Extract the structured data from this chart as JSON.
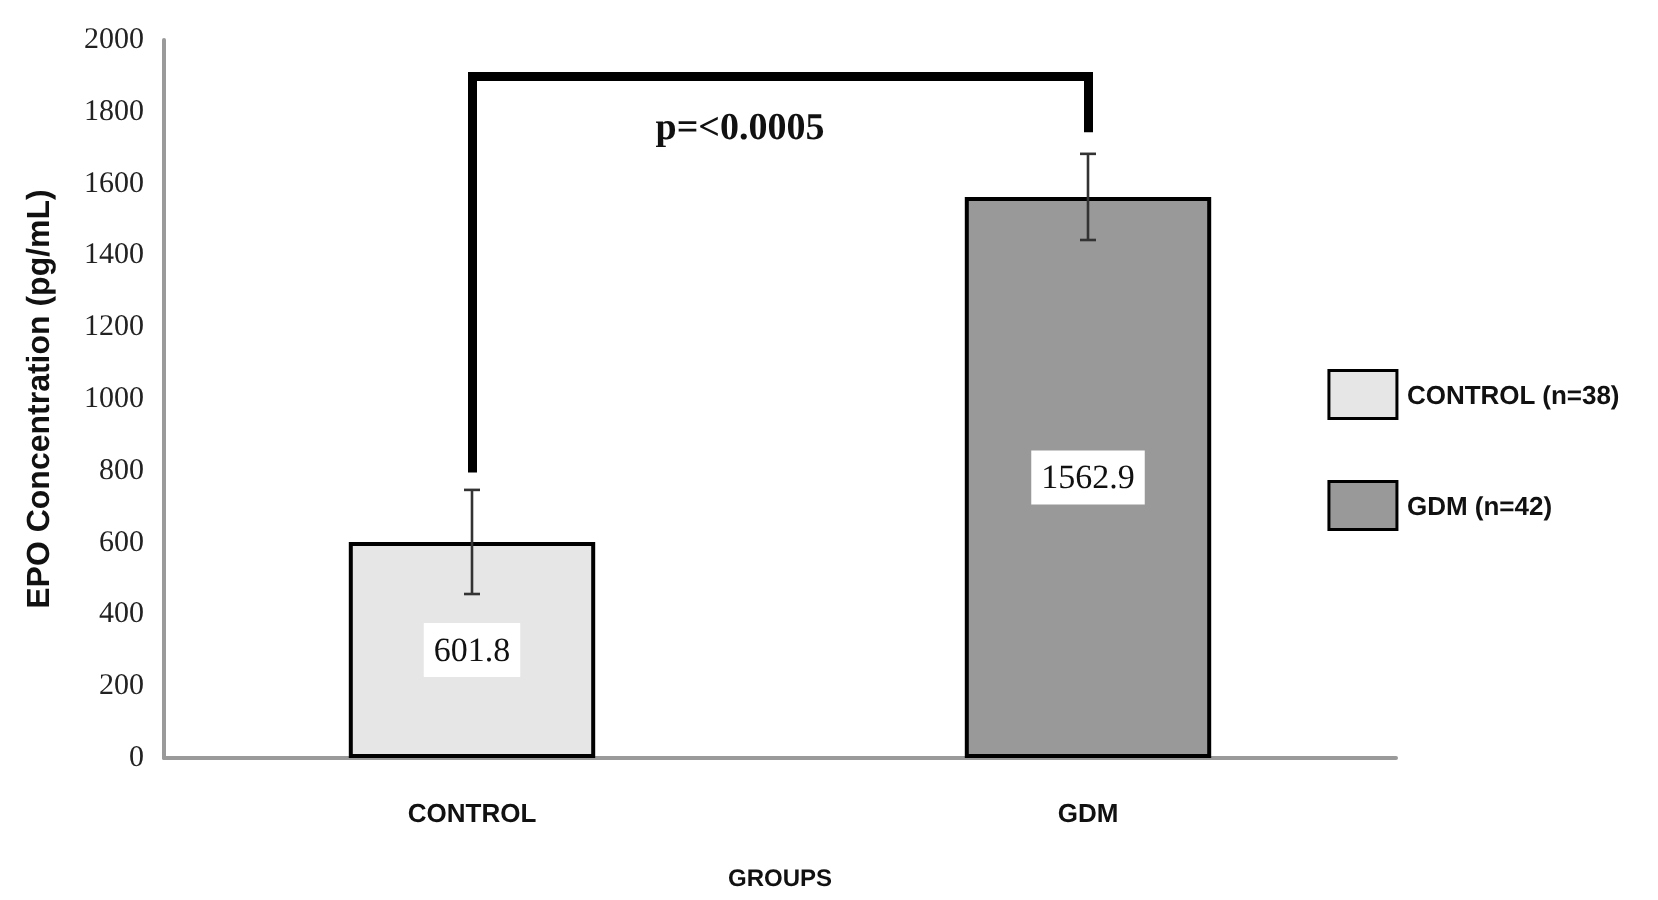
{
  "chart_data": {
    "type": "bar",
    "categories": [
      "CONTROL",
      "GDM"
    ],
    "series": [
      {
        "name": "CONTROL (n=38)",
        "color": "#e6e6e6",
        "values": [
          601.8,
          null
        ],
        "errors": [
          145,
          null
        ]
      },
      {
        "name": "GDM (n=42)",
        "color": "#999999",
        "values": [
          null,
          1562.9
        ],
        "errors": [
          null,
          120
        ]
      }
    ],
    "xlabel": "GROUPS",
    "ylabel": "EPO Concentration (pg/mL)",
    "ylim": [
      0,
      2000
    ],
    "yticks": [
      0,
      200,
      400,
      600,
      800,
      1000,
      1200,
      1400,
      1600,
      1800,
      2000
    ],
    "data_labels": true,
    "annotations": [
      "p=<0.0005"
    ],
    "legend": "right",
    "grid": false
  }
}
